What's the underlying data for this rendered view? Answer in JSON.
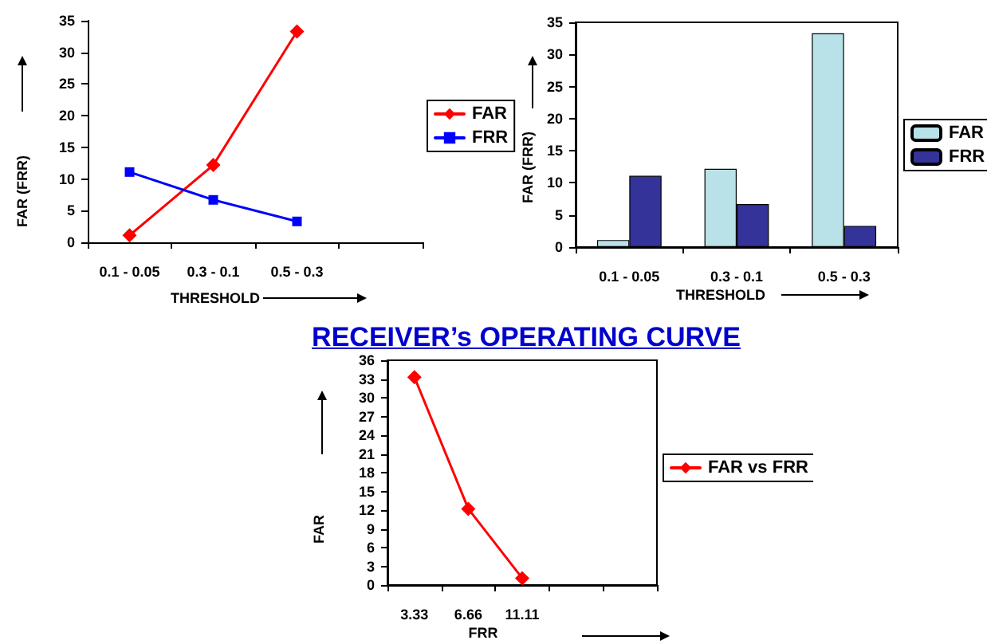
{
  "chart_data": [
    {
      "type": "line",
      "xlabel": "THRESHOLD",
      "ylabel": "FAR (FRR)",
      "categories": [
        "0.1 - 0.05",
        "0.3 - 0.1",
        "0.5 - 0.3",
        null
      ],
      "ylim": [
        0,
        35
      ],
      "yticks": [
        0,
        5,
        10,
        15,
        20,
        25,
        30,
        35
      ],
      "grid": false,
      "legend": "right",
      "series": [
        {
          "name": "FAR",
          "color": "#ff0000",
          "marker": "diamond",
          "values": [
            1.1,
            12.2,
            33.3,
            null
          ]
        },
        {
          "name": "FRR",
          "color": "#0000ff",
          "marker": "square",
          "values": [
            11.1,
            6.7,
            3.3,
            null
          ]
        }
      ]
    },
    {
      "type": "bar",
      "xlabel": "THRESHOLD",
      "ylabel": "FAR (FRR)",
      "categories": [
        "0.1 - 0.05",
        "0.3 - 0.1",
        "0.5 - 0.3"
      ],
      "ylim": [
        0,
        35
      ],
      "yticks": [
        0,
        5,
        10,
        15,
        20,
        25,
        30,
        35
      ],
      "grid": false,
      "legend": "right",
      "series": [
        {
          "name": "FAR",
          "color": "#b8e2e8",
          "values": [
            1.1,
            12.2,
            33.3
          ]
        },
        {
          "name": "FRR",
          "color": "#333399",
          "values": [
            11.1,
            6.7,
            3.3
          ]
        }
      ]
    },
    {
      "type": "line",
      "title": "RECEIVER’s OPERATING CURVE",
      "xlabel": "FRR",
      "ylabel": "FAR",
      "categories": [
        "3.33",
        "6.66",
        "11.11",
        null,
        null
      ],
      "ylim": [
        0,
        36
      ],
      "yticks": [
        0,
        3,
        6,
        9,
        12,
        15,
        18,
        21,
        24,
        27,
        30,
        33,
        36
      ],
      "grid": false,
      "legend": "right",
      "series": [
        {
          "name": "FAR vs FRR",
          "color": "#ff0000",
          "marker": "diamond",
          "values": [
            33.3,
            12.2,
            1.1,
            null,
            null
          ]
        }
      ]
    }
  ]
}
